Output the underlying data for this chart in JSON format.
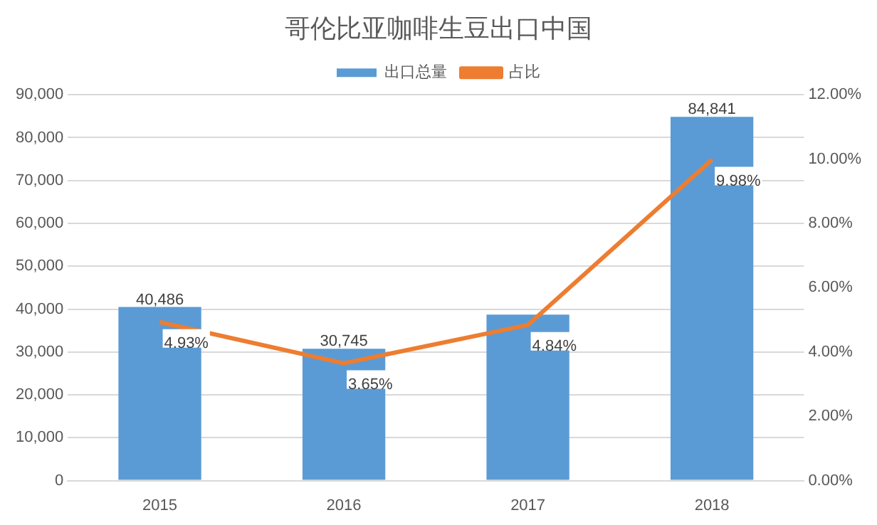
{
  "chart_data": {
    "type": "bar",
    "title": "哥伦比亚咖啡生豆出口中国",
    "categories": [
      "2015",
      "2016",
      "2017",
      "2018"
    ],
    "series": [
      {
        "name": "出口总量",
        "color": "#5b9bd5",
        "values": [
          40486,
          30745,
          38700,
          84841
        ],
        "value_labels": [
          "40,486",
          "30,745",
          null,
          "84,841"
        ]
      },
      {
        "name": "占比",
        "type": "line",
        "axis": "y2",
        "color": "#ed7d31",
        "values": [
          4.93,
          3.65,
          4.84,
          9.98
        ],
        "value_labels": [
          "4.93%",
          "3.65%",
          "4.84%",
          "9.98%"
        ]
      }
    ],
    "ylim": [
      0,
      90000
    ],
    "yticks": [
      {
        "value": 0,
        "label": "0"
      },
      {
        "value": 10000,
        "label": "10,000"
      },
      {
        "value": 20000,
        "label": "20,000"
      },
      {
        "value": 30000,
        "label": "30,000"
      },
      {
        "value": 40000,
        "label": "40,000"
      },
      {
        "value": 50000,
        "label": "50,000"
      },
      {
        "value": 60000,
        "label": "60,000"
      },
      {
        "value": 70000,
        "label": "70,000"
      },
      {
        "value": 80000,
        "label": "80,000"
      },
      {
        "value": 90000,
        "label": "90,000"
      }
    ],
    "y2lim": [
      0,
      12
    ],
    "y2ticks": [
      {
        "value": 0,
        "label": "0.00%"
      },
      {
        "value": 2,
        "label": "2.00%"
      },
      {
        "value": 4,
        "label": "4.00%"
      },
      {
        "value": 6,
        "label": "6.00%"
      },
      {
        "value": 8,
        "label": "8.00%"
      },
      {
        "value": 10,
        "label": "10.00%"
      },
      {
        "value": 12,
        "label": "12.00%"
      }
    ],
    "grid": "y",
    "legend": "top",
    "marker": "none",
    "line_style": "solid"
  }
}
